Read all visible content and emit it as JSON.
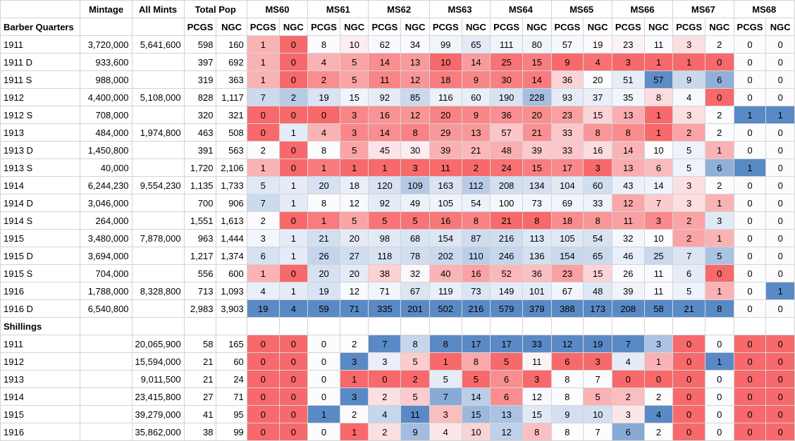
{
  "columns": {
    "mintage": "Mintage",
    "all_mints": "All Mints",
    "total_pop": "Total Pop",
    "grades": [
      "MS60",
      "MS61",
      "MS62",
      "MS63",
      "MS64",
      "MS65",
      "MS66",
      "MS67",
      "MS68"
    ],
    "pcgs": "PCGS",
    "ngc": "NGC"
  },
  "sections": [
    {
      "title": "Barber Quarters",
      "rows": [
        {
          "label": "1911",
          "mintage": "3,720,000",
          "all_mints": "5,641,600",
          "pcgs": "598",
          "ngc": "160",
          "grades": [
            1,
            0,
            8,
            10,
            62,
            34,
            99,
            65,
            111,
            80,
            57,
            19,
            23,
            11,
            3,
            2,
            0,
            0
          ]
        },
        {
          "label": "1911 D",
          "mintage": "933,600",
          "all_mints": "",
          "pcgs": "397",
          "ngc": "692",
          "grades": [
            1,
            0,
            4,
            5,
            14,
            13,
            10,
            14,
            25,
            15,
            9,
            4,
            3,
            1,
            1,
            0,
            0,
            0
          ]
        },
        {
          "label": "1911 S",
          "mintage": "988,000",
          "all_mints": "",
          "pcgs": "319",
          "ngc": "363",
          "grades": [
            1,
            0,
            2,
            5,
            11,
            12,
            18,
            9,
            30,
            14,
            36,
            20,
            51,
            57,
            9,
            6,
            0,
            0
          ]
        },
        {
          "label": "1912",
          "mintage": "4,400,000",
          "all_mints": "5,108,000",
          "pcgs": "828",
          "ngc": "1,117",
          "grades": [
            7,
            2,
            19,
            15,
            92,
            85,
            116,
            60,
            190,
            228,
            93,
            37,
            35,
            8,
            4,
            0,
            0,
            0
          ]
        },
        {
          "label": "1912 S",
          "mintage": "708,000",
          "all_mints": "",
          "pcgs": "320",
          "ngc": "321",
          "grades": [
            0,
            0,
            0,
            3,
            16,
            12,
            20,
            9,
            36,
            20,
            23,
            15,
            13,
            1,
            3,
            2,
            1,
            1
          ]
        },
        {
          "label": "1913",
          "mintage": "484,000",
          "all_mints": "1,974,800",
          "pcgs": "463",
          "ngc": "508",
          "grades": [
            0,
            1,
            4,
            3,
            14,
            8,
            29,
            13,
            57,
            21,
            33,
            8,
            8,
            1,
            2,
            2,
            0,
            0
          ]
        },
        {
          "label": "1913 D",
          "mintage": "1,450,800",
          "all_mints": "",
          "pcgs": "391",
          "ngc": "563",
          "grades": [
            2,
            0,
            8,
            5,
            45,
            30,
            39,
            21,
            48,
            39,
            33,
            16,
            14,
            10,
            5,
            1,
            0,
            0
          ]
        },
        {
          "label": "1913 S",
          "mintage": "40,000",
          "all_mints": "",
          "pcgs": "1,720",
          "ngc": "2,106",
          "grades": [
            1,
            0,
            1,
            1,
            1,
            3,
            11,
            2,
            24,
            15,
            17,
            3,
            13,
            6,
            5,
            6,
            1,
            0
          ]
        },
        {
          "label": "1914",
          "mintage": "6,244,230",
          "all_mints": "9,554,230",
          "pcgs": "1,135",
          "ngc": "1,733",
          "grades": [
            5,
            1,
            20,
            18,
            120,
            109,
            163,
            112,
            208,
            134,
            104,
            60,
            43,
            14,
            3,
            2,
            0,
            0
          ]
        },
        {
          "label": "1914 D",
          "mintage": "3,046,000",
          "all_mints": "",
          "pcgs": "700",
          "ngc": "906",
          "grades": [
            7,
            1,
            8,
            12,
            92,
            49,
            105,
            54,
            100,
            73,
            69,
            33,
            12,
            7,
            3,
            1,
            0,
            0
          ]
        },
        {
          "label": "1914 S",
          "mintage": "264,000",
          "all_mints": "",
          "pcgs": "1,551",
          "ngc": "1,613",
          "grades": [
            2,
            0,
            1,
            5,
            5,
            5,
            16,
            8,
            21,
            8,
            18,
            8,
            11,
            3,
            2,
            3,
            0,
            0
          ]
        },
        {
          "label": "1915",
          "mintage": "3,480,000",
          "all_mints": "7,878,000",
          "pcgs": "963",
          "ngc": "1,444",
          "grades": [
            3,
            1,
            21,
            20,
            98,
            68,
            154,
            87,
            216,
            113,
            105,
            54,
            32,
            10,
            2,
            1,
            0,
            0
          ]
        },
        {
          "label": "1915 D",
          "mintage": "3,694,000",
          "all_mints": "",
          "pcgs": "1,217",
          "ngc": "1,374",
          "grades": [
            6,
            1,
            26,
            27,
            118,
            78,
            202,
            110,
            246,
            136,
            154,
            65,
            46,
            25,
            7,
            5,
            0,
            0
          ]
        },
        {
          "label": "1915 S",
          "mintage": "704,000",
          "all_mints": "",
          "pcgs": "556",
          "ngc": "600",
          "grades": [
            1,
            0,
            20,
            20,
            38,
            32,
            40,
            16,
            52,
            36,
            23,
            15,
            26,
            11,
            6,
            0,
            0,
            0
          ]
        },
        {
          "label": "1916",
          "mintage": "1,788,000",
          "all_mints": "8,328,800",
          "pcgs": "713",
          "ngc": "1,093",
          "grades": [
            4,
            1,
            19,
            12,
            71,
            67,
            119,
            73,
            149,
            101,
            67,
            48,
            39,
            11,
            5,
            1,
            0,
            1
          ]
        },
        {
          "label": "1916 D",
          "mintage": "6,540,800",
          "all_mints": "",
          "pcgs": "2,983",
          "ngc": "3,903",
          "grades": [
            19,
            4,
            59,
            71,
            335,
            201,
            502,
            216,
            579,
            379,
            388,
            173,
            208,
            58,
            21,
            8,
            0,
            0
          ]
        }
      ]
    },
    {
      "title": "Shillings",
      "rows": [
        {
          "label": "1911",
          "mintage": "",
          "all_mints": "20,065,900",
          "pcgs": "58",
          "ngc": "165",
          "grades": [
            0,
            0,
            0,
            2,
            7,
            8,
            8,
            17,
            17,
            33,
            12,
            19,
            7,
            3,
            0,
            0,
            0,
            0
          ]
        },
        {
          "label": "1912",
          "mintage": "",
          "all_mints": "15,594,000",
          "pcgs": "21",
          "ngc": "60",
          "grades": [
            0,
            0,
            0,
            3,
            3,
            5,
            1,
            8,
            5,
            11,
            6,
            3,
            4,
            1,
            0,
            1,
            0,
            0
          ]
        },
        {
          "label": "1913",
          "mintage": "",
          "all_mints": "9,011,500",
          "pcgs": "21",
          "ngc": "24",
          "grades": [
            0,
            0,
            0,
            1,
            0,
            2,
            5,
            5,
            6,
            3,
            8,
            7,
            0,
            0,
            0,
            0,
            0,
            0
          ]
        },
        {
          "label": "1914",
          "mintage": "",
          "all_mints": "23,415,800",
          "pcgs": "27",
          "ngc": "71",
          "grades": [
            0,
            0,
            0,
            3,
            2,
            5,
            7,
            14,
            6,
            12,
            8,
            5,
            2,
            2,
            0,
            0,
            0,
            0
          ]
        },
        {
          "label": "1915",
          "mintage": "",
          "all_mints": "39,279,000",
          "pcgs": "41",
          "ngc": "95",
          "grades": [
            0,
            0,
            1,
            2,
            4,
            11,
            3,
            15,
            13,
            15,
            9,
            10,
            3,
            4,
            0,
            0,
            0,
            0
          ]
        },
        {
          "label": "1916",
          "mintage": "",
          "all_mints": "35,862,000",
          "pcgs": "38",
          "ngc": "99",
          "grades": [
            0,
            0,
            0,
            1,
            2,
            9,
            4,
            10,
            12,
            8,
            8,
            7,
            6,
            2,
            0,
            0,
            0,
            0
          ]
        }
      ]
    }
  ],
  "colors": {
    "low": "#f8696b",
    "mid": "#fcfcff",
    "high": "#5a8ac6"
  }
}
